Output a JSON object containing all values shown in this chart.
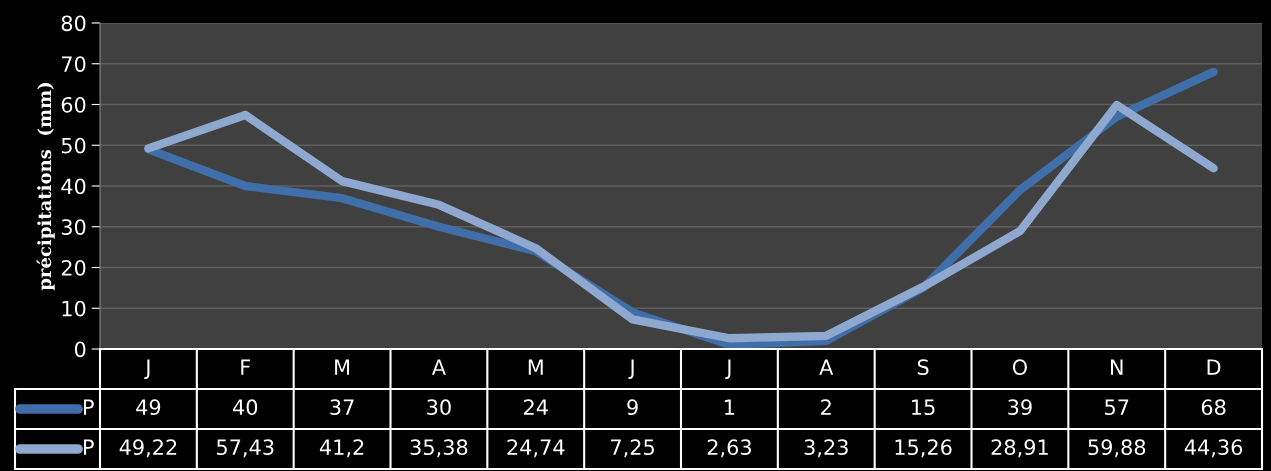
{
  "chart_data": {
    "type": "line",
    "ylabel": "précipitations  (mm)",
    "categories": [
      "J",
      "F",
      "M",
      "A",
      "M",
      "J",
      "J",
      "A",
      "S",
      "O",
      "N",
      "D"
    ],
    "series": [
      {
        "name": "P",
        "color": "#3f6ea8",
        "values": [
          49,
          40,
          37,
          30,
          24,
          9,
          1,
          2,
          15,
          39,
          57,
          68
        ],
        "value_labels": [
          "49",
          "40",
          "37",
          "30",
          "24",
          "9",
          "1",
          "2",
          "15",
          "39",
          "57",
          "68"
        ]
      },
      {
        "name": "P",
        "color": "#8ea8cf",
        "values": [
          49.22,
          57.43,
          41.2,
          35.38,
          24.74,
          7.25,
          2.63,
          3.23,
          15.26,
          28.91,
          59.88,
          44.36
        ],
        "value_labels": [
          "49,22",
          "57,43",
          "41,2",
          "35,38",
          "24,74",
          "7,25",
          "2,63",
          "3,23",
          "15,26",
          "28,91",
          "59,88",
          "44,36"
        ]
      }
    ],
    "ylim": [
      0,
      80
    ],
    "yticks": [
      0,
      10,
      20,
      30,
      40,
      50,
      60,
      70,
      80
    ],
    "grid": "y",
    "legend": "bottom",
    "marker": "none",
    "line_style": "solid",
    "tick_labels": "y"
  }
}
